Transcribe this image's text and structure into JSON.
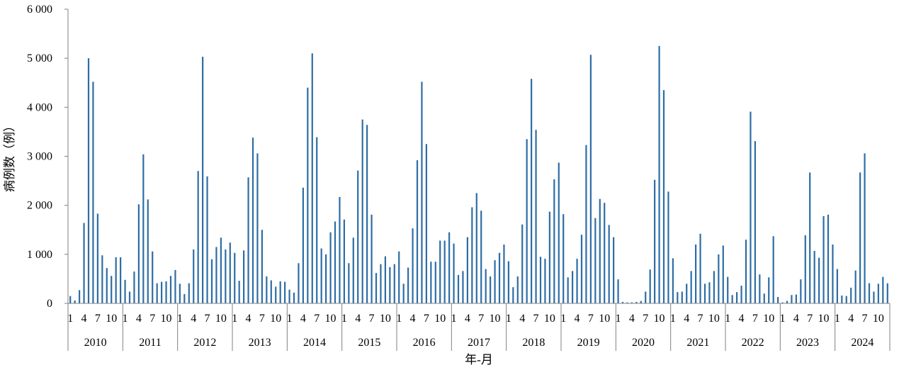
{
  "chart_data": {
    "type": "bar",
    "title": "",
    "xlabel": "年-月",
    "ylabel": "病例数（例）",
    "ylim": [
      0,
      6000
    ],
    "yticks": [
      0,
      1000,
      2000,
      3000,
      4000,
      5000,
      6000
    ],
    "ytick_labels": [
      "0",
      "1 000",
      "2 000",
      "3 000",
      "4 000",
      "5 000",
      "6 000"
    ],
    "month_tick_labels": [
      "1",
      "4",
      "7",
      "10"
    ],
    "bar_color": "#2E6DA4",
    "grid": false,
    "legend": "none",
    "years": [
      {
        "year": "2010",
        "values": [
          150,
          60,
          270,
          1640,
          5000,
          4520,
          1830,
          980,
          720,
          560,
          940,
          940
        ]
      },
      {
        "year": "2011",
        "values": [
          480,
          240,
          650,
          2020,
          3040,
          2120,
          1060,
          410,
          440,
          450,
          560,
          680
        ]
      },
      {
        "year": "2012",
        "values": [
          400,
          190,
          410,
          1100,
          2700,
          5030,
          2590,
          900,
          1150,
          1340,
          1100,
          1240
        ]
      },
      {
        "year": "2013",
        "values": [
          1030,
          460,
          1080,
          2570,
          3380,
          3060,
          1500,
          550,
          470,
          340,
          450,
          440
        ]
      },
      {
        "year": "2014",
        "values": [
          280,
          220,
          820,
          2360,
          4400,
          5100,
          3390,
          1120,
          1000,
          1450,
          1670,
          2170
        ]
      },
      {
        "year": "2015",
        "values": [
          1710,
          820,
          1340,
          2710,
          3750,
          3640,
          1810,
          620,
          800,
          960,
          740,
          800
        ]
      },
      {
        "year": "2016",
        "values": [
          1060,
          400,
          730,
          1530,
          2920,
          4520,
          3250,
          850,
          850,
          1280,
          1280,
          1450
        ]
      },
      {
        "year": "2017",
        "values": [
          1220,
          580,
          660,
          1350,
          1960,
          2250,
          1890,
          700,
          550,
          880,
          1030,
          1200
        ]
      },
      {
        "year": "2018",
        "values": [
          860,
          330,
          550,
          1610,
          3350,
          4580,
          3540,
          950,
          910,
          1870,
          2530,
          2870
        ]
      },
      {
        "year": "2019",
        "values": [
          1820,
          530,
          660,
          910,
          1400,
          3230,
          5070,
          1740,
          2130,
          2050,
          1600,
          1350
        ]
      },
      {
        "year": "2020",
        "values": [
          490,
          30,
          20,
          20,
          30,
          50,
          240,
          690,
          2520,
          5250,
          4350,
          2280
        ]
      },
      {
        "year": "2021",
        "values": [
          920,
          230,
          240,
          400,
          660,
          1200,
          1420,
          400,
          430,
          660,
          1000,
          1180
        ]
      },
      {
        "year": "2022",
        "values": [
          540,
          170,
          230,
          360,
          1300,
          3910,
          3310,
          590,
          200,
          530,
          1370,
          130
        ]
      },
      {
        "year": "2023",
        "values": [
          20,
          50,
          170,
          180,
          490,
          1390,
          2670,
          1070,
          930,
          1780,
          1810,
          1200
        ]
      },
      {
        "year": "2024",
        "values": [
          700,
          160,
          150,
          320,
          670,
          2670,
          3060,
          410,
          240,
          400,
          540,
          410
        ]
      }
    ]
  }
}
